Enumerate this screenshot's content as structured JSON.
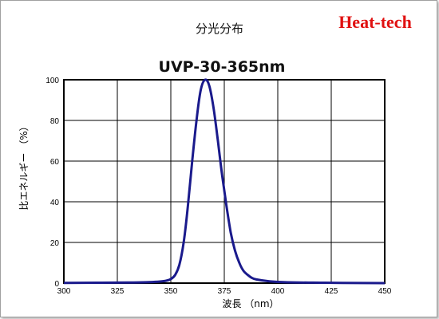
{
  "header": {
    "heading": "分光分布",
    "brand": "Heat-tech"
  },
  "colors": {
    "brand": "#e01010",
    "curve": "#1a1a8c",
    "grid": "#000000"
  },
  "chart_data": {
    "type": "line",
    "title": "UVP-30-365nm",
    "xlabel": "波長 （nm）",
    "ylabel": "比エネルギー （%）",
    "xlim": [
      300,
      450
    ],
    "ylim": [
      0,
      100
    ],
    "xticks": [
      300,
      325,
      350,
      375,
      400,
      425,
      450
    ],
    "yticks": [
      0,
      20,
      40,
      60,
      80,
      100
    ],
    "grid": true,
    "series": [
      {
        "x": [
          300,
          330,
          340,
          345,
          348,
          350,
          352,
          354,
          356,
          358,
          360,
          362,
          364,
          366,
          368,
          370,
          372,
          374,
          376,
          378,
          380,
          382,
          384,
          386,
          388,
          390,
          395,
          400,
          410,
          420,
          430,
          450
        ],
        "y": [
          0.1,
          0.3,
          0.5,
          0.8,
          1.2,
          2,
          4,
          9,
          20,
          38,
          60,
          80,
          95,
          100,
          97,
          86,
          70,
          53,
          38,
          25,
          16,
          10,
          6,
          4,
          2.5,
          1.8,
          1,
          0.6,
          0.3,
          0.2,
          0.1,
          0
        ]
      }
    ]
  }
}
